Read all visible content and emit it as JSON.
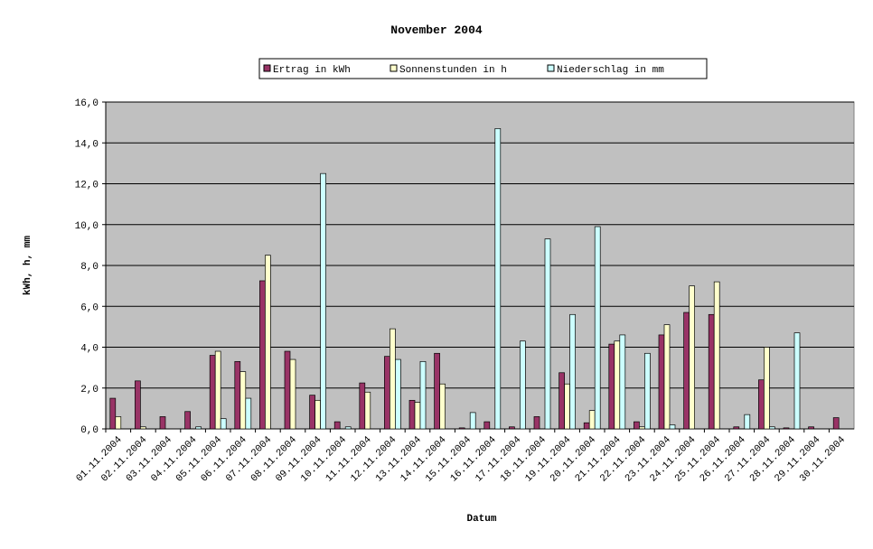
{
  "chart_data": {
    "type": "bar",
    "title": "November 2004",
    "x_label": "Datum",
    "y_label": "kWh, h, mm",
    "categories": [
      "01.11.2004",
      "02.11.2004",
      "03.11.2004",
      "04.11.2004",
      "05.11.2004",
      "06.11.2004",
      "07.11.2004",
      "08.11.2004",
      "09.11.2004",
      "10.11.2004",
      "11.11.2004",
      "12.11.2004",
      "13.11.2004",
      "14.11.2004",
      "15.11.2004",
      "16.11.2004",
      "17.11.2004",
      "18.11.2004",
      "19.11.2004",
      "20.11.2004",
      "21.11.2004",
      "22.11.2004",
      "23.11.2004",
      "24.11.2004",
      "25.11.2004",
      "26.11.2004",
      "27.11.2004",
      "28.11.2004",
      "29.11.2004",
      "30.11.2004"
    ],
    "series": [
      {
        "name": "Ertrag in kWh",
        "color": "#993366",
        "values": [
          1.5,
          2.35,
          0.6,
          0.85,
          3.6,
          3.3,
          7.25,
          3.8,
          1.65,
          0.35,
          2.25,
          3.55,
          1.4,
          3.7,
          0.05,
          0.35,
          0.1,
          0.6,
          2.75,
          0.3,
          4.15,
          0.35,
          4.6,
          5.7,
          5.6,
          0.1,
          2.4,
          0.05,
          0.1,
          0.55
        ]
      },
      {
        "name": "Sonnenstunden in h",
        "color": "#ffffcc",
        "values": [
          0.6,
          0.1,
          0,
          0,
          3.8,
          2.8,
          8.5,
          3.4,
          1.4,
          0,
          1.8,
          4.9,
          1.3,
          2.2,
          0,
          0,
          0,
          0,
          2.2,
          0.9,
          4.3,
          0.1,
          5.1,
          7.0,
          7.2,
          0,
          4.0,
          0,
          0,
          0
        ]
      },
      {
        "name": "Niederschlag in mm",
        "color": "#ccffff",
        "values": [
          0,
          0,
          0,
          0.1,
          0.5,
          1.5,
          0,
          0,
          12.5,
          0.1,
          0,
          3.4,
          3.3,
          0,
          0.8,
          14.7,
          4.3,
          9.3,
          5.6,
          9.9,
          4.6,
          3.7,
          0.2,
          0,
          0,
          0.7,
          0.1,
          4.7,
          0,
          0
        ]
      }
    ],
    "ylim": [
      0,
      16
    ],
    "yticks": [
      {
        "value": 0,
        "label": "0,0"
      },
      {
        "value": 2,
        "label": "2,0"
      },
      {
        "value": 4,
        "label": "4,0"
      },
      {
        "value": 6,
        "label": "6,0"
      },
      {
        "value": 8,
        "label": "8,0"
      },
      {
        "value": 10,
        "label": "10,0"
      },
      {
        "value": 12,
        "label": "12,0"
      },
      {
        "value": 14,
        "label": "14,0"
      },
      {
        "value": 16,
        "label": "16,0"
      }
    ],
    "grid": true,
    "plot_background": "#c0c0c0"
  }
}
